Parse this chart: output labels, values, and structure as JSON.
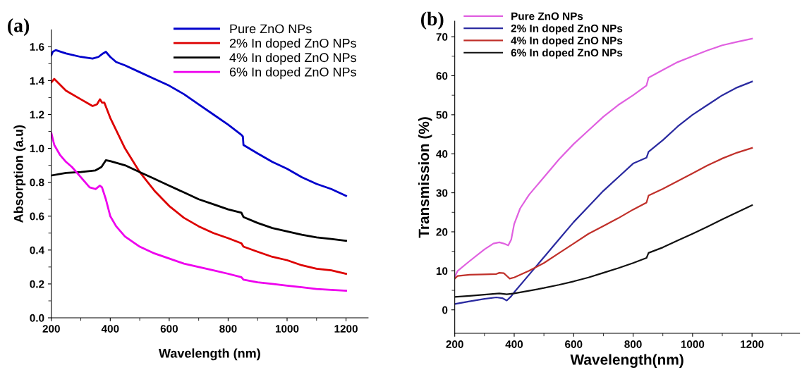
{
  "chart_data": [
    {
      "type": "line",
      "title": "(a)",
      "xlabel": "Wavelength (nm)",
      "ylabel": "Absorption (a.u)",
      "xlim": [
        200,
        1275
      ],
      "xticks": [
        200,
        400,
        600,
        800,
        1000,
        1200
      ],
      "ylim": [
        0,
        1.7
      ],
      "yticks": [
        {
          "value": 0,
          "label": "0.0"
        },
        0.2,
        0.4,
        0.6,
        0.8,
        {
          "value": 1,
          "label": "1.0"
        },
        1.2,
        1.4,
        1.6
      ],
      "legend": "top right",
      "series": [
        {
          "name": "Pure ZnO NPs",
          "color": "#0000cc",
          "x": [
            200,
            205,
            215,
            250,
            300,
            340,
            360,
            375,
            385,
            400,
            420,
            450,
            500,
            550,
            600,
            650,
            700,
            750,
            800,
            845,
            850,
            852,
            900,
            950,
            1000,
            1050,
            1100,
            1150,
            1200
          ],
          "values": [
            1.55,
            1.57,
            1.58,
            1.56,
            1.54,
            1.53,
            1.54,
            1.56,
            1.57,
            1.54,
            1.51,
            1.49,
            1.45,
            1.41,
            1.37,
            1.32,
            1.26,
            1.2,
            1.14,
            1.08,
            1.07,
            1.02,
            0.97,
            0.92,
            0.88,
            0.83,
            0.79,
            0.76,
            0.72
          ]
        },
        {
          "name": "2% In doped ZnO NPs",
          "color": "#dd0000",
          "x": [
            200,
            210,
            250,
            300,
            340,
            355,
            365,
            372,
            380,
            400,
            450,
            500,
            550,
            600,
            650,
            700,
            750,
            800,
            845,
            852,
            900,
            950,
            1000,
            1050,
            1100,
            1150,
            1200
          ],
          "values": [
            1.39,
            1.41,
            1.34,
            1.29,
            1.25,
            1.26,
            1.29,
            1.27,
            1.27,
            1.18,
            1.0,
            0.86,
            0.75,
            0.66,
            0.59,
            0.54,
            0.5,
            0.47,
            0.44,
            0.42,
            0.39,
            0.36,
            0.34,
            0.31,
            0.29,
            0.28,
            0.26
          ]
        },
        {
          "name": "4% In doped ZnO NPs",
          "color": "#000000",
          "x": [
            200,
            250,
            300,
            350,
            370,
            385,
            400,
            450,
            500,
            550,
            600,
            650,
            700,
            750,
            800,
            845,
            852,
            900,
            950,
            1000,
            1050,
            1100,
            1150,
            1200
          ],
          "values": [
            0.84,
            0.855,
            0.86,
            0.87,
            0.89,
            0.93,
            0.925,
            0.9,
            0.86,
            0.82,
            0.78,
            0.74,
            0.7,
            0.67,
            0.64,
            0.62,
            0.595,
            0.56,
            0.53,
            0.51,
            0.49,
            0.475,
            0.465,
            0.455
          ]
        },
        {
          "name": "6% In doped ZnO NPs",
          "color": "#ee00ee",
          "x": [
            200,
            210,
            230,
            250,
            270,
            300,
            330,
            350,
            365,
            372,
            385,
            400,
            420,
            450,
            500,
            550,
            600,
            650,
            700,
            750,
            800,
            845,
            852,
            900,
            950,
            1000,
            1050,
            1100,
            1150,
            1200
          ],
          "values": [
            1.09,
            1.02,
            0.96,
            0.92,
            0.89,
            0.83,
            0.77,
            0.76,
            0.78,
            0.77,
            0.7,
            0.6,
            0.54,
            0.48,
            0.42,
            0.38,
            0.35,
            0.32,
            0.3,
            0.28,
            0.26,
            0.24,
            0.225,
            0.21,
            0.2,
            0.19,
            0.18,
            0.17,
            0.165,
            0.16
          ]
        }
      ]
    },
    {
      "type": "line",
      "title": "(b)",
      "xlabel": "Wavelength(nm)",
      "ylabel": "Transmission (%)",
      "xlim": [
        200,
        1360
      ],
      "xticks": [
        200,
        400,
        600,
        800,
        1000,
        1200
      ],
      "ylim": [
        -6,
        74
      ],
      "yticks": [
        0,
        10,
        20,
        30,
        40,
        50,
        60,
        70
      ],
      "legend": "top left",
      "series": [
        {
          "name": "Pure ZnO NPs",
          "color": "#e060e0",
          "x": [
            200,
            210,
            250,
            300,
            330,
            350,
            365,
            380,
            390,
            400,
            420,
            450,
            500,
            550,
            600,
            650,
            700,
            750,
            800,
            845,
            852,
            900,
            950,
            1000,
            1050,
            1100,
            1150,
            1200
          ],
          "values": [
            8.5,
            10,
            12.5,
            15.5,
            17,
            17.3,
            17,
            16.5,
            18,
            22,
            26,
            29.5,
            34,
            38.5,
            42.5,
            46,
            49.5,
            52.5,
            55,
            57.5,
            59.5,
            61.5,
            63.5,
            65,
            66.5,
            67.8,
            68.7,
            69.5
          ]
        },
        {
          "name": "2% In doped ZnO NPs",
          "color": "#2a2aa0",
          "x": [
            200,
            250,
            300,
            340,
            360,
            375,
            390,
            400,
            450,
            500,
            550,
            600,
            650,
            700,
            750,
            800,
            845,
            852,
            900,
            950,
            1000,
            1050,
            1100,
            1150,
            1200
          ],
          "values": [
            1.5,
            2.2,
            2.8,
            3.2,
            3.0,
            2.4,
            3.5,
            4.5,
            9,
            13.5,
            18,
            22.5,
            26.5,
            30.5,
            34,
            37.5,
            39,
            40.5,
            43.5,
            47,
            50,
            52.5,
            55,
            57,
            58.5
          ]
        },
        {
          "name": "4% In doped ZnO NPs",
          "color": "#c0302a",
          "x": [
            200,
            210,
            250,
            300,
            340,
            350,
            365,
            375,
            385,
            400,
            450,
            500,
            550,
            600,
            650,
            700,
            750,
            800,
            845,
            852,
            900,
            950,
            1000,
            1050,
            1100,
            1150,
            1200
          ],
          "values": [
            8,
            8.7,
            9,
            9.1,
            9.2,
            9.5,
            9.4,
            8.7,
            8.0,
            8.3,
            10,
            12,
            14.5,
            17,
            19.5,
            21.5,
            23.5,
            25.7,
            27.5,
            29.3,
            31,
            33,
            35,
            37,
            38.8,
            40.3,
            41.5
          ]
        },
        {
          "name": "6% In doped ZnO NPs",
          "color": "#111111",
          "x": [
            200,
            250,
            300,
            350,
            375,
            400,
            450,
            500,
            550,
            600,
            650,
            700,
            750,
            800,
            845,
            852,
            900,
            950,
            1000,
            1050,
            1100,
            1150,
            1200
          ],
          "values": [
            3.3,
            3.6,
            3.9,
            4.2,
            4.0,
            4.2,
            4.9,
            5.6,
            6.4,
            7.3,
            8.3,
            9.5,
            10.7,
            12,
            13.3,
            14.6,
            16,
            17.8,
            19.5,
            21.3,
            23.2,
            25,
            26.8
          ]
        }
      ]
    }
  ]
}
